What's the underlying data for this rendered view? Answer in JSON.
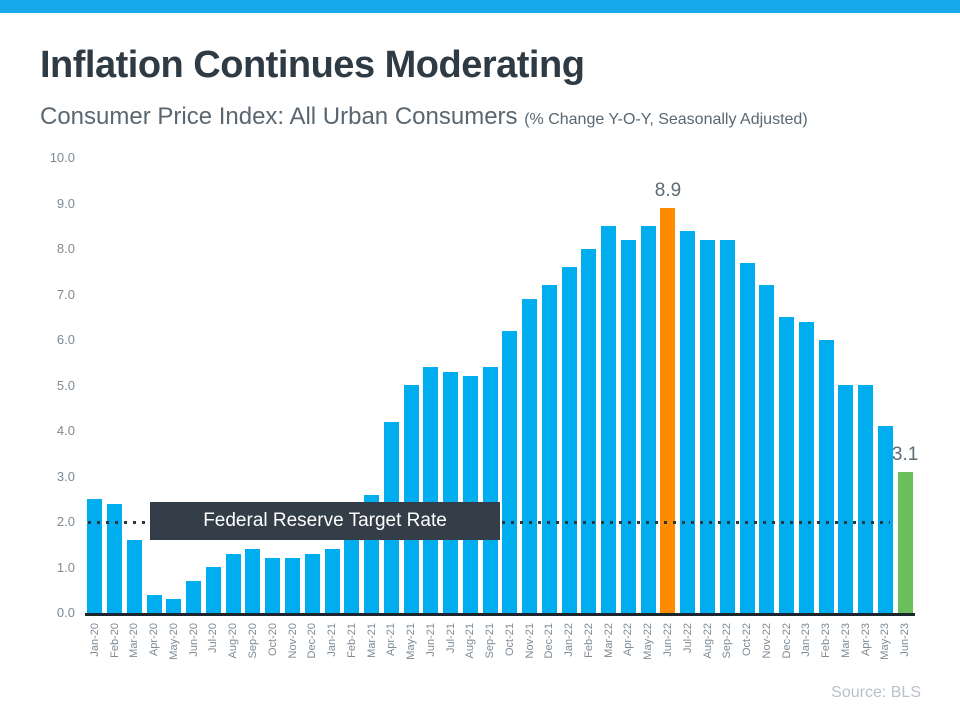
{
  "accent": {
    "strip_color": "#18a9ea"
  },
  "header": {
    "title": "Inflation Continues Moderating",
    "subtitle": "Consumer Price Index: All Urban Consumers",
    "subtitle_note": "(% Change Y-O-Y, Seasonally Adjusted)"
  },
  "chart_data": {
    "type": "bar",
    "title": "Consumer Price Index: All Urban Consumers (% Change Y-O-Y, Seasonally Adjusted)",
    "categories": [
      "Jan-20",
      "Feb-20",
      "Mar-20",
      "Apr-20",
      "May-20",
      "Jun-20",
      "Jul-20",
      "Aug-20",
      "Sep-20",
      "Oct-20",
      "Nov-20",
      "Dec-20",
      "Jan-21",
      "Feb-21",
      "Mar-21",
      "Apr-21",
      "May-21",
      "Jun-21",
      "Jul-21",
      "Aug-21",
      "Sep-21",
      "Oct-21",
      "Nov-21",
      "Dec-21",
      "Jan-22",
      "Feb-22",
      "Mar-22",
      "Apr-22",
      "May-22",
      "Jun-22",
      "Jul-22",
      "Aug-22",
      "Sep-22",
      "Oct-22",
      "Nov-22",
      "Dec-22",
      "Jan-23",
      "Feb-23",
      "Mar-23",
      "Apr-23",
      "May-23",
      "Jun-23"
    ],
    "values": [
      2.5,
      2.4,
      1.6,
      0.4,
      0.3,
      0.7,
      1.0,
      1.3,
      1.4,
      1.2,
      1.2,
      1.3,
      1.4,
      1.7,
      2.6,
      4.2,
      5.0,
      5.4,
      5.3,
      5.2,
      5.4,
      6.2,
      6.9,
      7.2,
      7.6,
      8.0,
      8.5,
      8.2,
      8.5,
      8.9,
      8.4,
      8.2,
      8.2,
      7.7,
      7.2,
      6.5,
      6.4,
      6.0,
      5.0,
      5.0,
      4.1,
      3.1
    ],
    "bar_color": "#00aeef",
    "ylim": [
      0,
      10
    ],
    "ytick_labels": [
      "0.0",
      "1.0",
      "2.0",
      "3.0",
      "4.0",
      "5.0",
      "6.0",
      "7.0",
      "8.0",
      "9.0",
      "10.0"
    ],
    "grid": false,
    "legend": "none",
    "highlights": [
      {
        "category": "Jun-22",
        "index": 29,
        "value": 8.9,
        "color": "#ff8c00",
        "label": "8.9"
      },
      {
        "category": "Jun-23",
        "index": 41,
        "value": 3.1,
        "color": "#6cbe5b",
        "label": "3.1"
      }
    ],
    "reference_line": {
      "value": 2.0,
      "style": "dotted",
      "color": "#2b3740",
      "label": "Federal Reserve Target Rate"
    }
  },
  "footer": {
    "source": "Source: BLS"
  }
}
